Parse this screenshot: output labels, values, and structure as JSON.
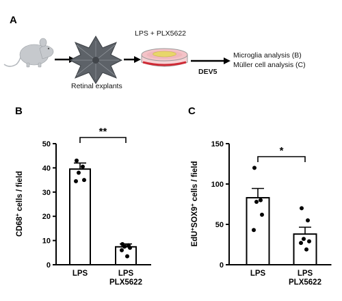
{
  "figure": {
    "panels": {
      "A": "A",
      "B": "B",
      "C": "C"
    },
    "schematic": {
      "explant_label": "Retinal explants",
      "treatment_label": "LPS + PLX5622",
      "timepoint_label": "DEV5",
      "outputs": [
        "Microglia analysis (B)",
        "Müller cell analysis (C)"
      ],
      "icons": [
        "mouse-icon",
        "retina-flatmount-icon",
        "culture-dish-icon",
        "arrow-icon"
      ]
    }
  },
  "chart_data": [
    {
      "panel": "B",
      "type": "bar",
      "categories": [
        {
          "line1": "LPS",
          "line2": ""
        },
        {
          "line1": "LPS",
          "line2": "PLX5622"
        }
      ],
      "values": [
        39.5,
        7.4
      ],
      "errors": [
        2.5,
        1.2
      ],
      "points": [
        [
          43,
          40.5,
          38,
          35,
          34.5
        ],
        [
          8.5,
          8,
          7.5,
          7,
          6,
          3.5
        ]
      ],
      "ylabel": {
        "main": "CD68",
        "sup": "+",
        "rest": " cells / field"
      },
      "ylim": [
        0,
        50
      ],
      "yticks": [
        0,
        10,
        20,
        30,
        40,
        50
      ],
      "significance": "**",
      "colors": {
        "bar_fill": "#ffffff",
        "stroke": "#000000",
        "points": "#000000"
      }
    },
    {
      "panel": "C",
      "type": "bar",
      "categories": [
        {
          "line1": "LPS",
          "line2": ""
        },
        {
          "line1": "LPS",
          "line2": "PLX5622"
        }
      ],
      "values": [
        83,
        38
      ],
      "errors": [
        11.5,
        8.5
      ],
      "points": [
        [
          120,
          80,
          78,
          62,
          43
        ],
        [
          70,
          55,
          32,
          29,
          27,
          19
        ]
      ],
      "ylabel": {
        "main": "EdU",
        "sup": "+",
        "mid": "SOX9",
        "sup2": "+",
        "rest": " cells / field"
      },
      "ylim": [
        0,
        150
      ],
      "yticks": [
        0,
        50,
        100,
        150
      ],
      "significance": "*",
      "colors": {
        "bar_fill": "#ffffff",
        "stroke": "#000000",
        "points": "#000000"
      }
    }
  ]
}
